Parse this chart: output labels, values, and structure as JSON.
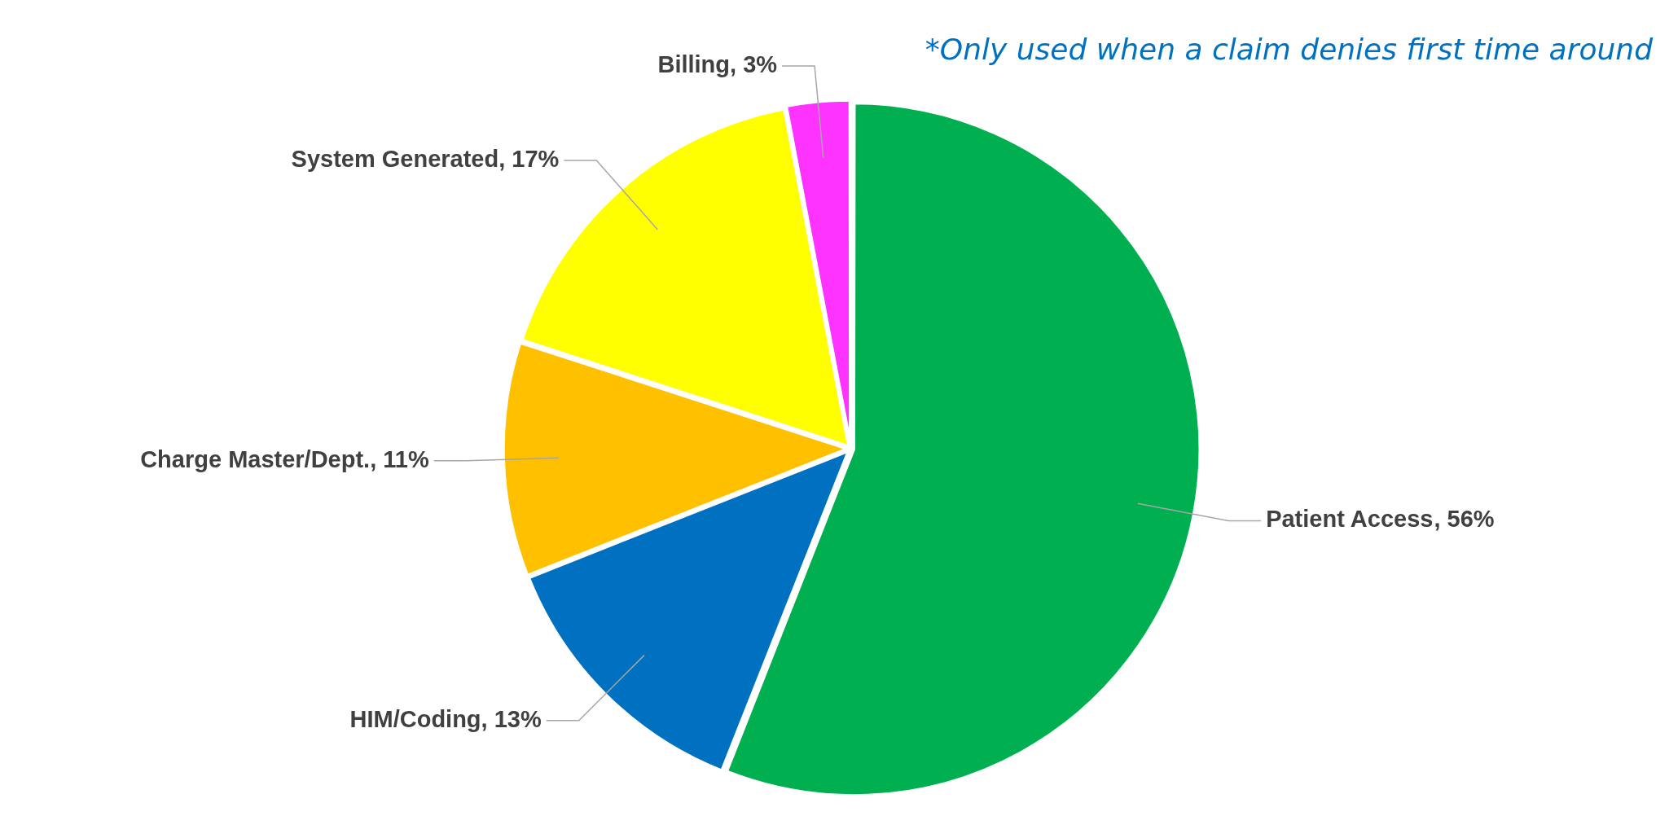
{
  "chart_data": {
    "type": "pie",
    "categories": [
      "Patient Access",
      "HIM/Coding",
      "Charge Master/Dept.",
      "System Generated",
      "Billing"
    ],
    "values": [
      56,
      13,
      11,
      17,
      3
    ],
    "colors": [
      "#00b050",
      "#0070c0",
      "#ffc000",
      "#ffff00",
      "#ff33ff"
    ],
    "value_labels": [
      ", 56%",
      ", 13%",
      ", 11%",
      ", 17%",
      ", 3%"
    ],
    "legend": false,
    "annotations": [
      "*Only used when a claim denies first time around"
    ]
  }
}
